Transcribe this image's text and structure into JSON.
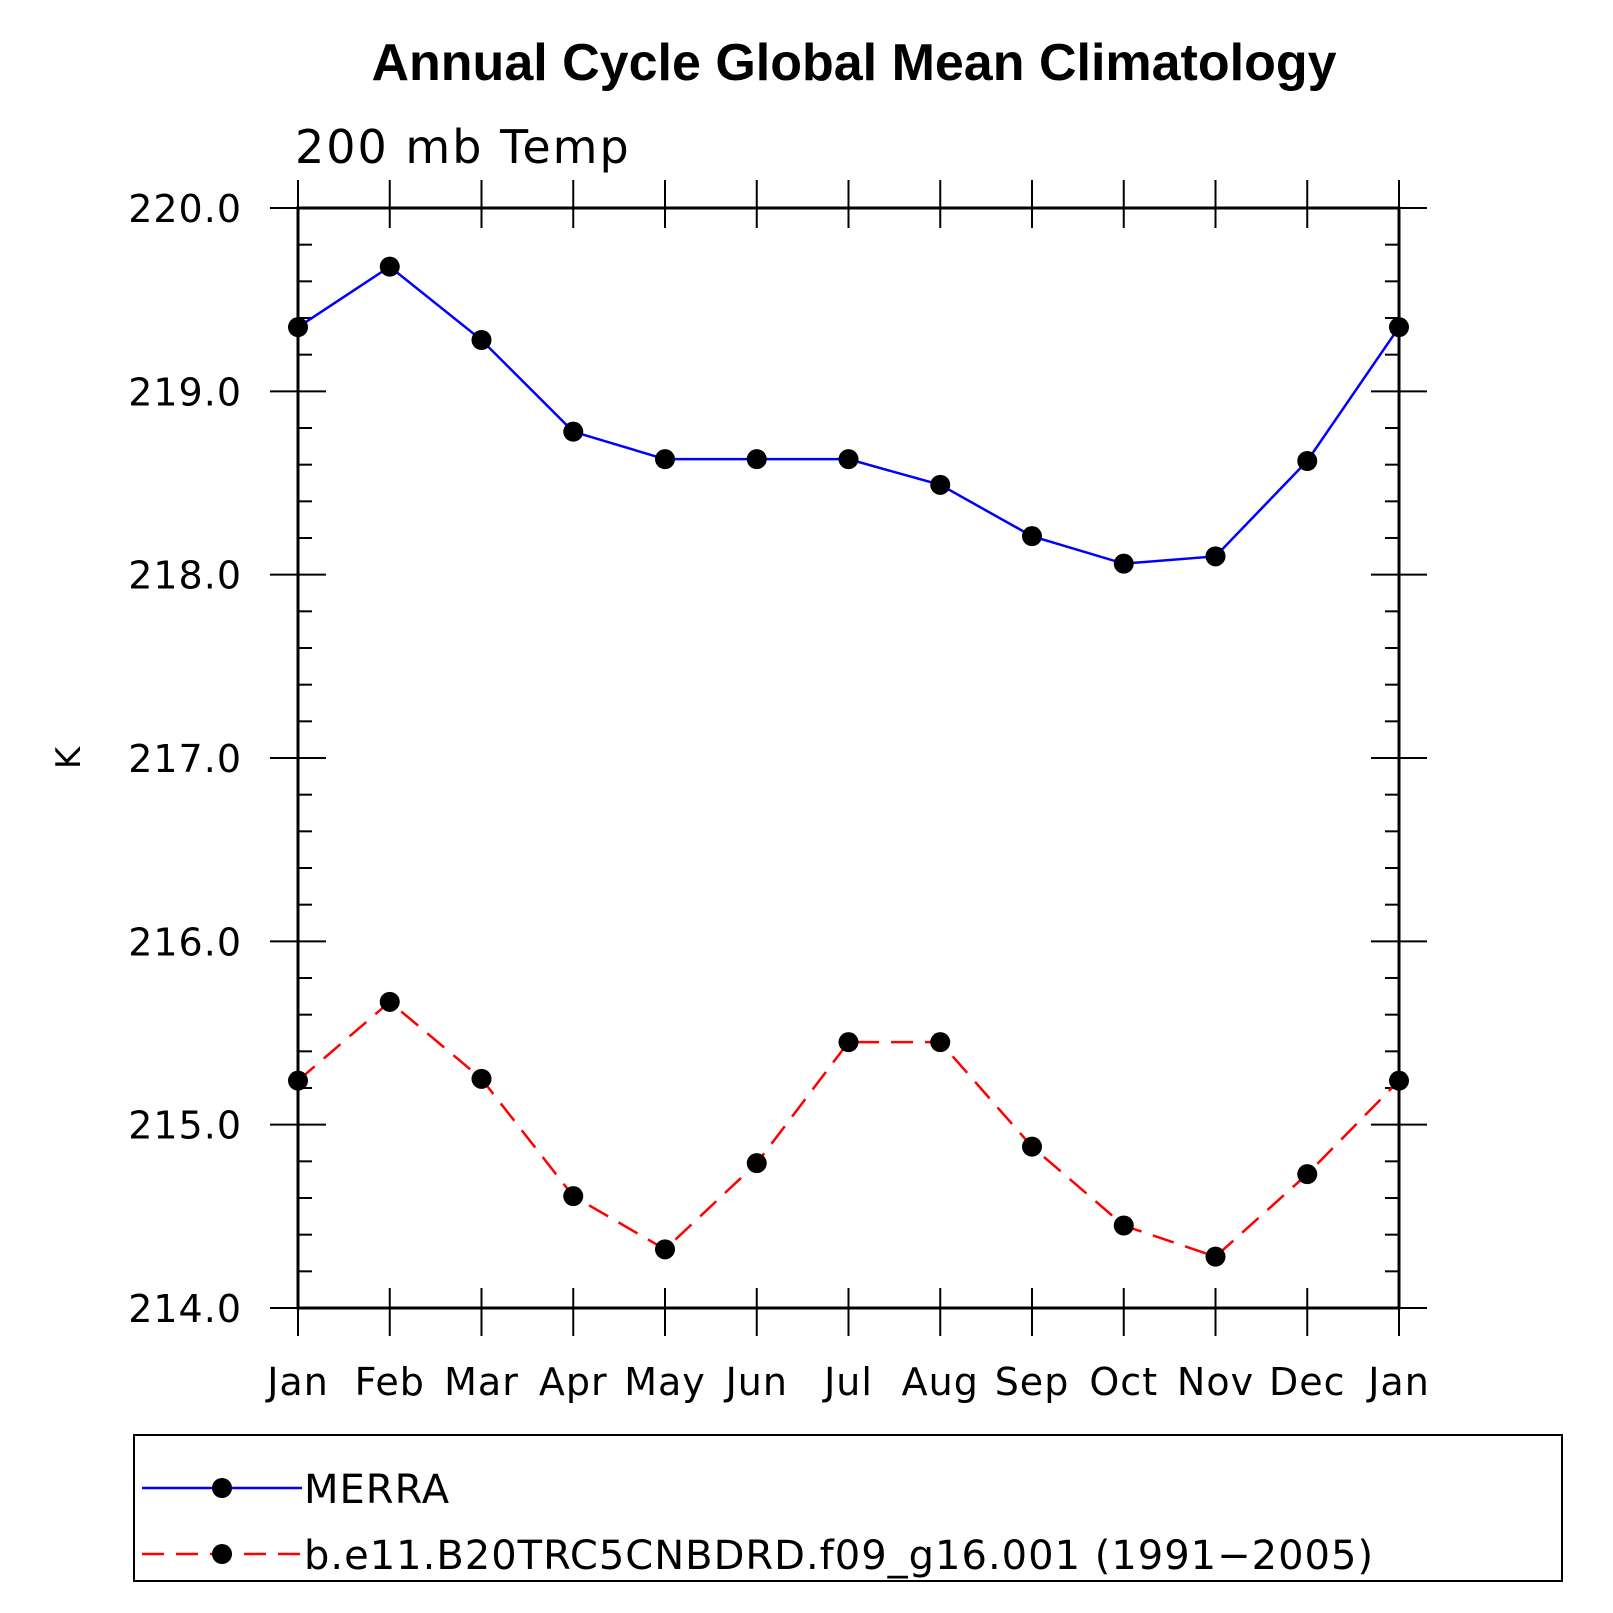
{
  "chart_data": {
    "type": "line",
    "title": "Annual Cycle Global Mean Climatology",
    "subtitle": "200 mb Temp",
    "xlabel": "",
    "ylabel": "K",
    "categories": [
      "Jan",
      "Feb",
      "Mar",
      "Apr",
      "May",
      "Jun",
      "Jul",
      "Aug",
      "Sep",
      "Oct",
      "Nov",
      "Dec",
      "Jan"
    ],
    "ylim": [
      214.0,
      220.0
    ],
    "y_ticks": [
      "214.0",
      "215.0",
      "216.0",
      "217.0",
      "218.0",
      "219.0",
      "220.0"
    ],
    "y_minor_step": 0.2,
    "grid": false,
    "legend_position": "bottom",
    "series": [
      {
        "name": "MERRA",
        "color": "#0000ff",
        "dash": "solid",
        "marker": "filled-circle",
        "values": [
          219.35,
          219.68,
          219.28,
          218.78,
          218.63,
          218.63,
          218.63,
          218.49,
          218.21,
          218.06,
          218.1,
          218.62,
          219.35
        ]
      },
      {
        "name": "b.e11.B20TRC5CNBDRD.f09_g16.001 (1991−2005)",
        "color": "#ff0000",
        "dash": "dashed",
        "marker": "filled-circle",
        "values": [
          215.24,
          215.67,
          215.25,
          214.61,
          214.32,
          214.79,
          215.45,
          215.45,
          214.88,
          214.45,
          214.28,
          214.73,
          215.24
        ]
      }
    ]
  }
}
